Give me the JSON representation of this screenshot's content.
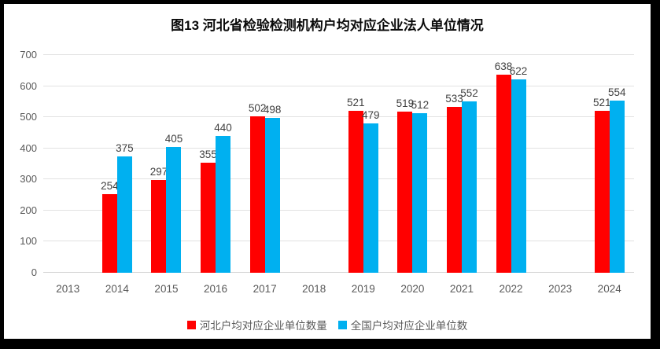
{
  "title": "图13 河北省检验检测机构户均对应企业法人单位情况",
  "chart_data": {
    "type": "bar",
    "title": "图13 河北省检验检测机构户均对应企业法人单位情况",
    "categories": [
      "2013",
      "2014",
      "2015",
      "2016",
      "2017",
      "2018",
      "2019",
      "2020",
      "2021",
      "2022",
      "2023",
      "2024"
    ],
    "series": [
      {
        "name": "河北户均对应企业单位数量",
        "color": "#ff0000",
        "values": [
          null,
          254,
          297,
          355,
          502,
          null,
          521,
          519,
          533,
          638,
          null,
          521
        ]
      },
      {
        "name": "全国户均对应企业单位数",
        "color": "#00b0f0",
        "values": [
          null,
          375,
          405,
          440,
          498,
          null,
          479,
          512,
          552,
          622,
          null,
          554
        ]
      }
    ],
    "xlabel": "",
    "ylabel": "",
    "ylim": [
      0,
      700
    ],
    "yticks": [
      0,
      100,
      200,
      300,
      400,
      500,
      600,
      700
    ],
    "grid": true,
    "legend_position": "bottom",
    "data_labels": true
  },
  "colors": {
    "frame": "#000000",
    "background": "#ffffff",
    "gridline": "#e2e2e2",
    "axis_text": "#595959",
    "data_label_text": "#404040",
    "series_hebei": "#ff0000",
    "series_national": "#00b0f0"
  }
}
